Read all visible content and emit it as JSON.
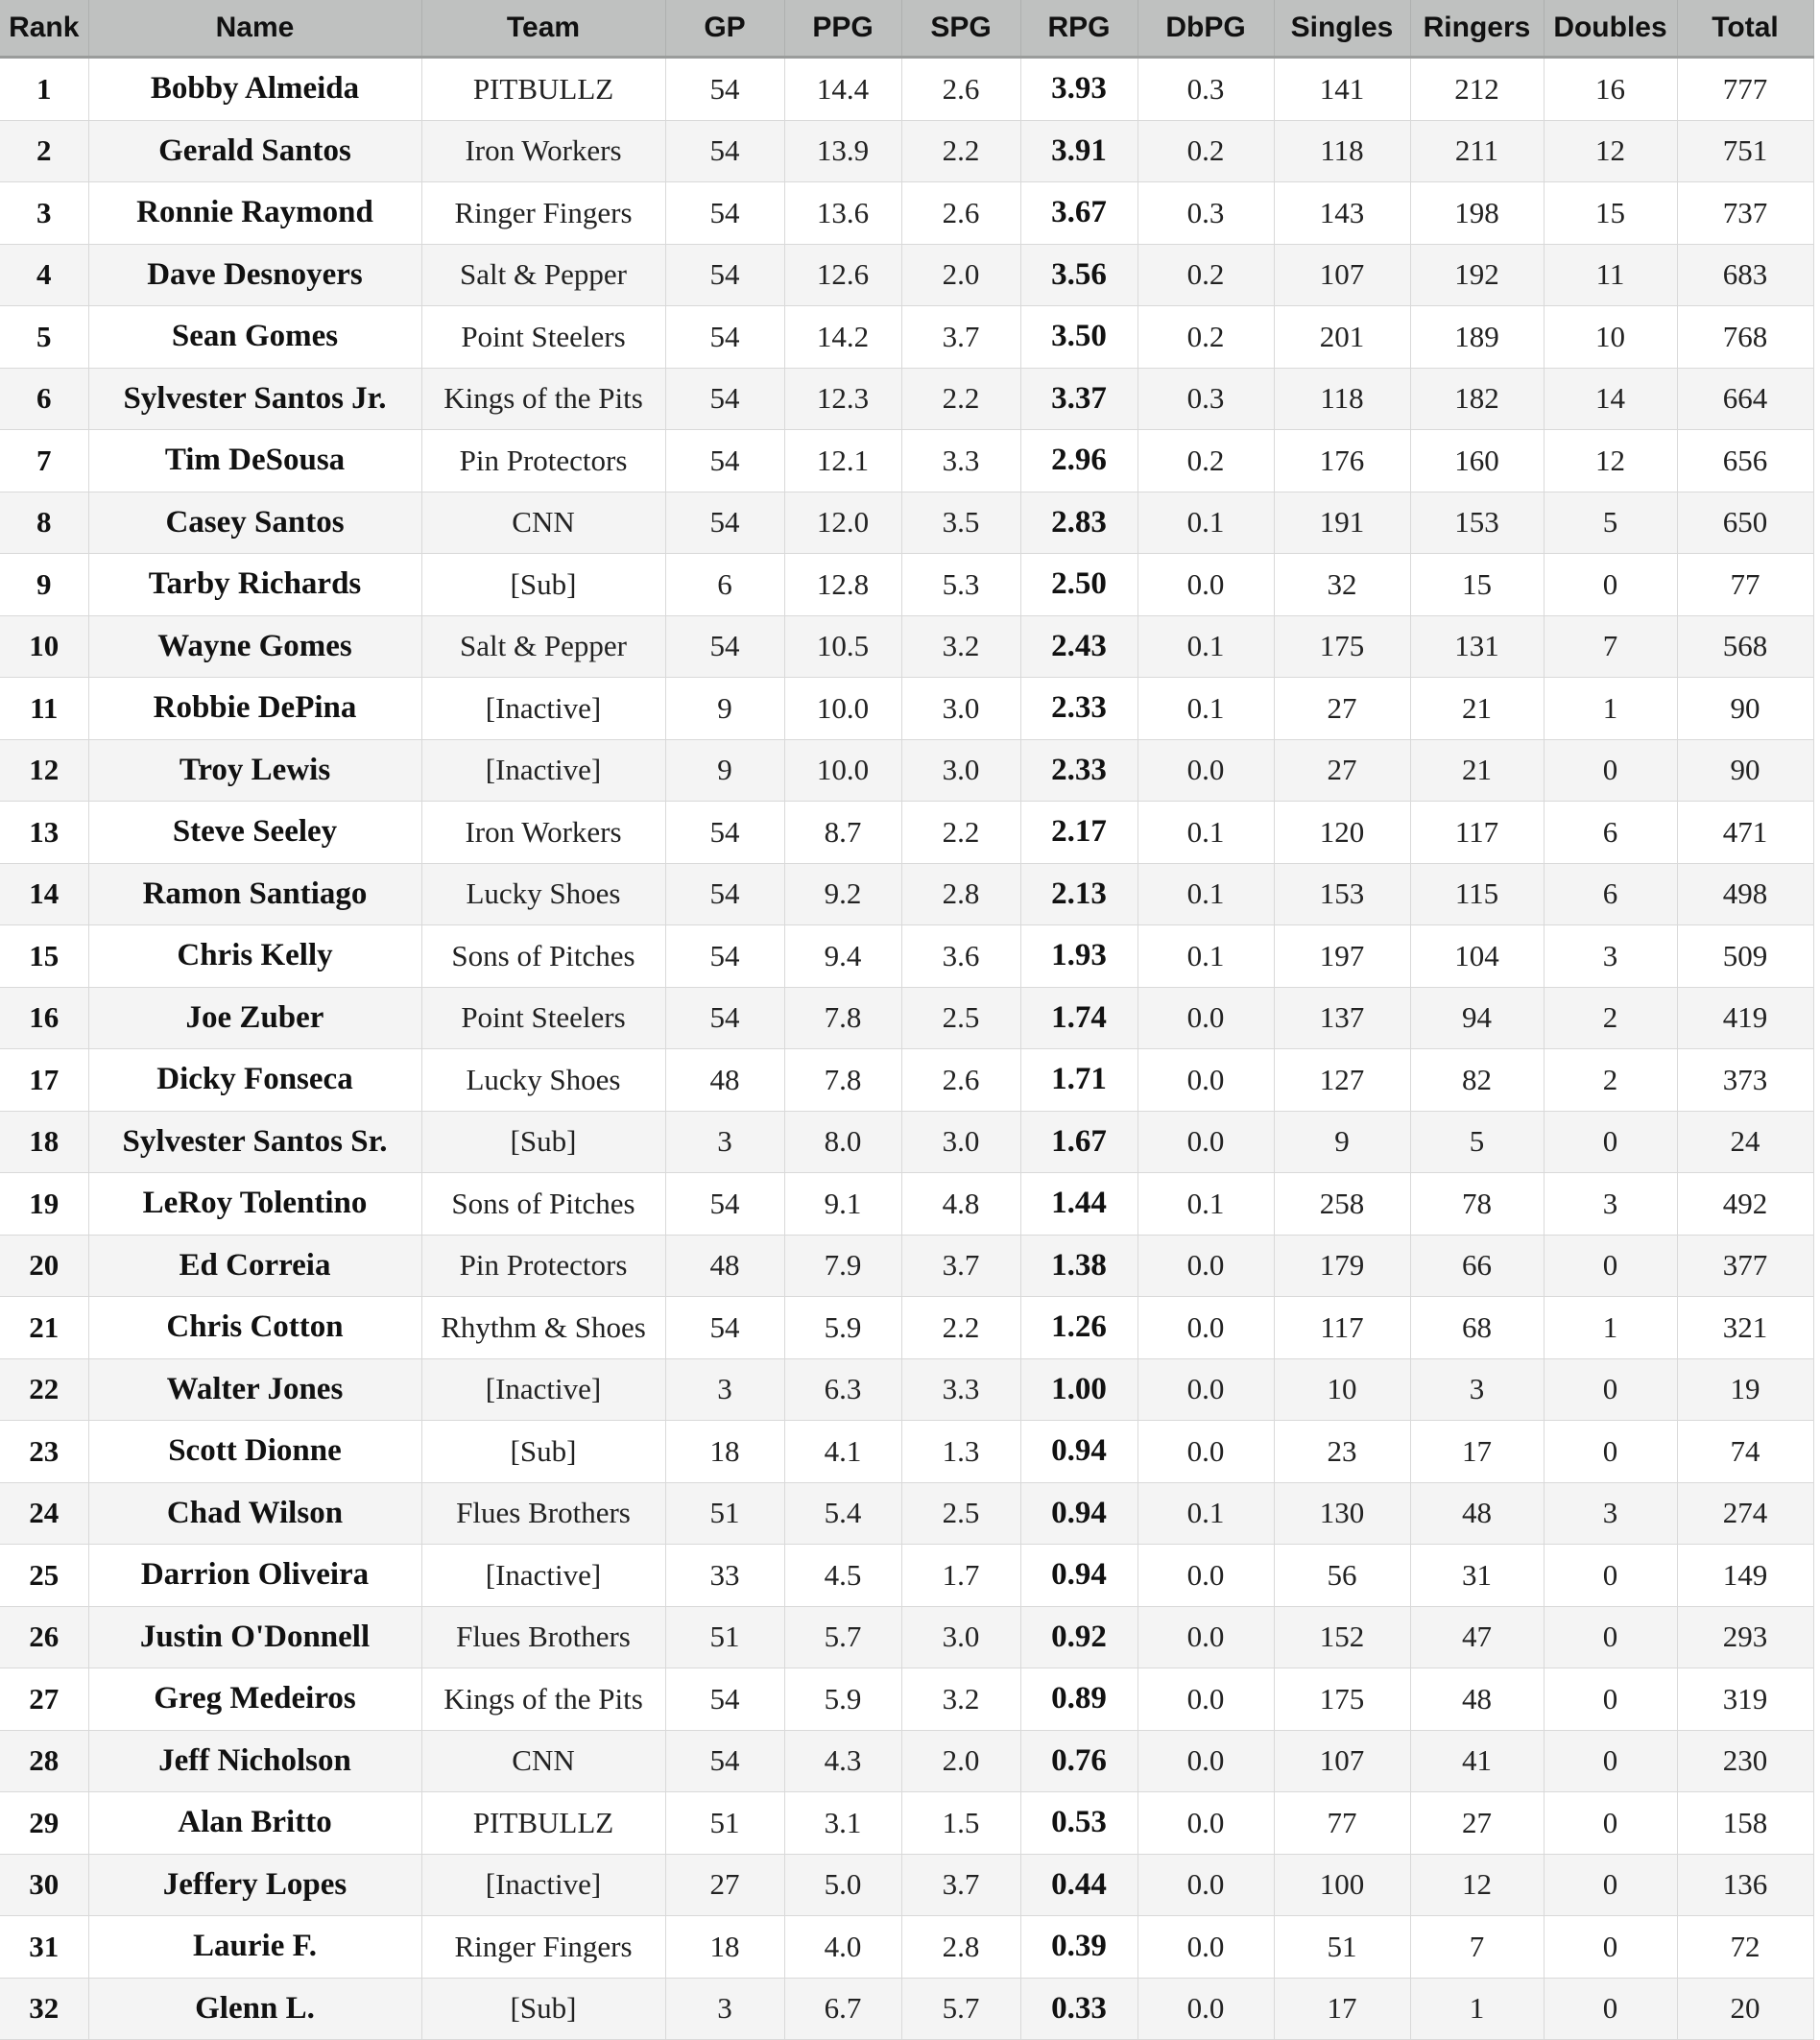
{
  "table": {
    "headers": [
      "Rank",
      "Name",
      "Team",
      "GP",
      "PPG",
      "SPG",
      "RPG",
      "DbPG",
      "Singles",
      "Ringers",
      "Doubles",
      "Total"
    ],
    "rows": [
      [
        "1",
        "Bobby Almeida",
        "PITBULLZ",
        "54",
        "14.4",
        "2.6",
        "3.93",
        "0.3",
        "141",
        "212",
        "16",
        "777"
      ],
      [
        "2",
        "Gerald Santos",
        "Iron Workers",
        "54",
        "13.9",
        "2.2",
        "3.91",
        "0.2",
        "118",
        "211",
        "12",
        "751"
      ],
      [
        "3",
        "Ronnie Raymond",
        "Ringer Fingers",
        "54",
        "13.6",
        "2.6",
        "3.67",
        "0.3",
        "143",
        "198",
        "15",
        "737"
      ],
      [
        "4",
        "Dave Desnoyers",
        "Salt & Pepper",
        "54",
        "12.6",
        "2.0",
        "3.56",
        "0.2",
        "107",
        "192",
        "11",
        "683"
      ],
      [
        "5",
        "Sean Gomes",
        "Point Steelers",
        "54",
        "14.2",
        "3.7",
        "3.50",
        "0.2",
        "201",
        "189",
        "10",
        "768"
      ],
      [
        "6",
        "Sylvester Santos Jr.",
        "Kings of the Pits",
        "54",
        "12.3",
        "2.2",
        "3.37",
        "0.3",
        "118",
        "182",
        "14",
        "664"
      ],
      [
        "7",
        "Tim DeSousa",
        "Pin Protectors",
        "54",
        "12.1",
        "3.3",
        "2.96",
        "0.2",
        "176",
        "160",
        "12",
        "656"
      ],
      [
        "8",
        "Casey Santos",
        "CNN",
        "54",
        "12.0",
        "3.5",
        "2.83",
        "0.1",
        "191",
        "153",
        "5",
        "650"
      ],
      [
        "9",
        "Tarby Richards",
        "[Sub]",
        "6",
        "12.8",
        "5.3",
        "2.50",
        "0.0",
        "32",
        "15",
        "0",
        "77"
      ],
      [
        "10",
        "Wayne Gomes",
        "Salt & Pepper",
        "54",
        "10.5",
        "3.2",
        "2.43",
        "0.1",
        "175",
        "131",
        "7",
        "568"
      ],
      [
        "11",
        "Robbie DePina",
        "[Inactive]",
        "9",
        "10.0",
        "3.0",
        "2.33",
        "0.1",
        "27",
        "21",
        "1",
        "90"
      ],
      [
        "12",
        "Troy Lewis",
        "[Inactive]",
        "9",
        "10.0",
        "3.0",
        "2.33",
        "0.0",
        "27",
        "21",
        "0",
        "90"
      ],
      [
        "13",
        "Steve Seeley",
        "Iron Workers",
        "54",
        "8.7",
        "2.2",
        "2.17",
        "0.1",
        "120",
        "117",
        "6",
        "471"
      ],
      [
        "14",
        "Ramon Santiago",
        "Lucky Shoes",
        "54",
        "9.2",
        "2.8",
        "2.13",
        "0.1",
        "153",
        "115",
        "6",
        "498"
      ],
      [
        "15",
        "Chris Kelly",
        "Sons of Pitches",
        "54",
        "9.4",
        "3.6",
        "1.93",
        "0.1",
        "197",
        "104",
        "3",
        "509"
      ],
      [
        "16",
        "Joe Zuber",
        "Point Steelers",
        "54",
        "7.8",
        "2.5",
        "1.74",
        "0.0",
        "137",
        "94",
        "2",
        "419"
      ],
      [
        "17",
        "Dicky Fonseca",
        "Lucky Shoes",
        "48",
        "7.8",
        "2.6",
        "1.71",
        "0.0",
        "127",
        "82",
        "2",
        "373"
      ],
      [
        "18",
        "Sylvester Santos Sr.",
        "[Sub]",
        "3",
        "8.0",
        "3.0",
        "1.67",
        "0.0",
        "9",
        "5",
        "0",
        "24"
      ],
      [
        "19",
        "LeRoy Tolentino",
        "Sons of Pitches",
        "54",
        "9.1",
        "4.8",
        "1.44",
        "0.1",
        "258",
        "78",
        "3",
        "492"
      ],
      [
        "20",
        "Ed Correia",
        "Pin Protectors",
        "48",
        "7.9",
        "3.7",
        "1.38",
        "0.0",
        "179",
        "66",
        "0",
        "377"
      ],
      [
        "21",
        "Chris Cotton",
        "Rhythm & Shoes",
        "54",
        "5.9",
        "2.2",
        "1.26",
        "0.0",
        "117",
        "68",
        "1",
        "321"
      ],
      [
        "22",
        "Walter Jones",
        "[Inactive]",
        "3",
        "6.3",
        "3.3",
        "1.00",
        "0.0",
        "10",
        "3",
        "0",
        "19"
      ],
      [
        "23",
        "Scott Dionne",
        "[Sub]",
        "18",
        "4.1",
        "1.3",
        "0.94",
        "0.0",
        "23",
        "17",
        "0",
        "74"
      ],
      [
        "24",
        "Chad Wilson",
        "Flues Brothers",
        "51",
        "5.4",
        "2.5",
        "0.94",
        "0.1",
        "130",
        "48",
        "3",
        "274"
      ],
      [
        "25",
        "Darrion Oliveira",
        "[Inactive]",
        "33",
        "4.5",
        "1.7",
        "0.94",
        "0.0",
        "56",
        "31",
        "0",
        "149"
      ],
      [
        "26",
        "Justin O'Donnell",
        "Flues Brothers",
        "51",
        "5.7",
        "3.0",
        "0.92",
        "0.0",
        "152",
        "47",
        "0",
        "293"
      ],
      [
        "27",
        "Greg Medeiros",
        "Kings of the Pits",
        "54",
        "5.9",
        "3.2",
        "0.89",
        "0.0",
        "175",
        "48",
        "0",
        "319"
      ],
      [
        "28",
        "Jeff Nicholson",
        "CNN",
        "54",
        "4.3",
        "2.0",
        "0.76",
        "0.0",
        "107",
        "41",
        "0",
        "230"
      ],
      [
        "29",
        "Alan Britto",
        "PITBULLZ",
        "51",
        "3.1",
        "1.5",
        "0.53",
        "0.0",
        "77",
        "27",
        "0",
        "158"
      ],
      [
        "30",
        "Jeffery Lopes",
        "[Inactive]",
        "27",
        "5.0",
        "3.7",
        "0.44",
        "0.0",
        "100",
        "12",
        "0",
        "136"
      ],
      [
        "31",
        "Laurie F.",
        "Ringer Fingers",
        "18",
        "4.0",
        "2.8",
        "0.39",
        "0.0",
        "51",
        "7",
        "0",
        "72"
      ],
      [
        "32",
        "Glenn L.",
        "[Sub]",
        "3",
        "6.7",
        "5.7",
        "0.33",
        "0.0",
        "17",
        "1",
        "0",
        "20"
      ]
    ]
  }
}
